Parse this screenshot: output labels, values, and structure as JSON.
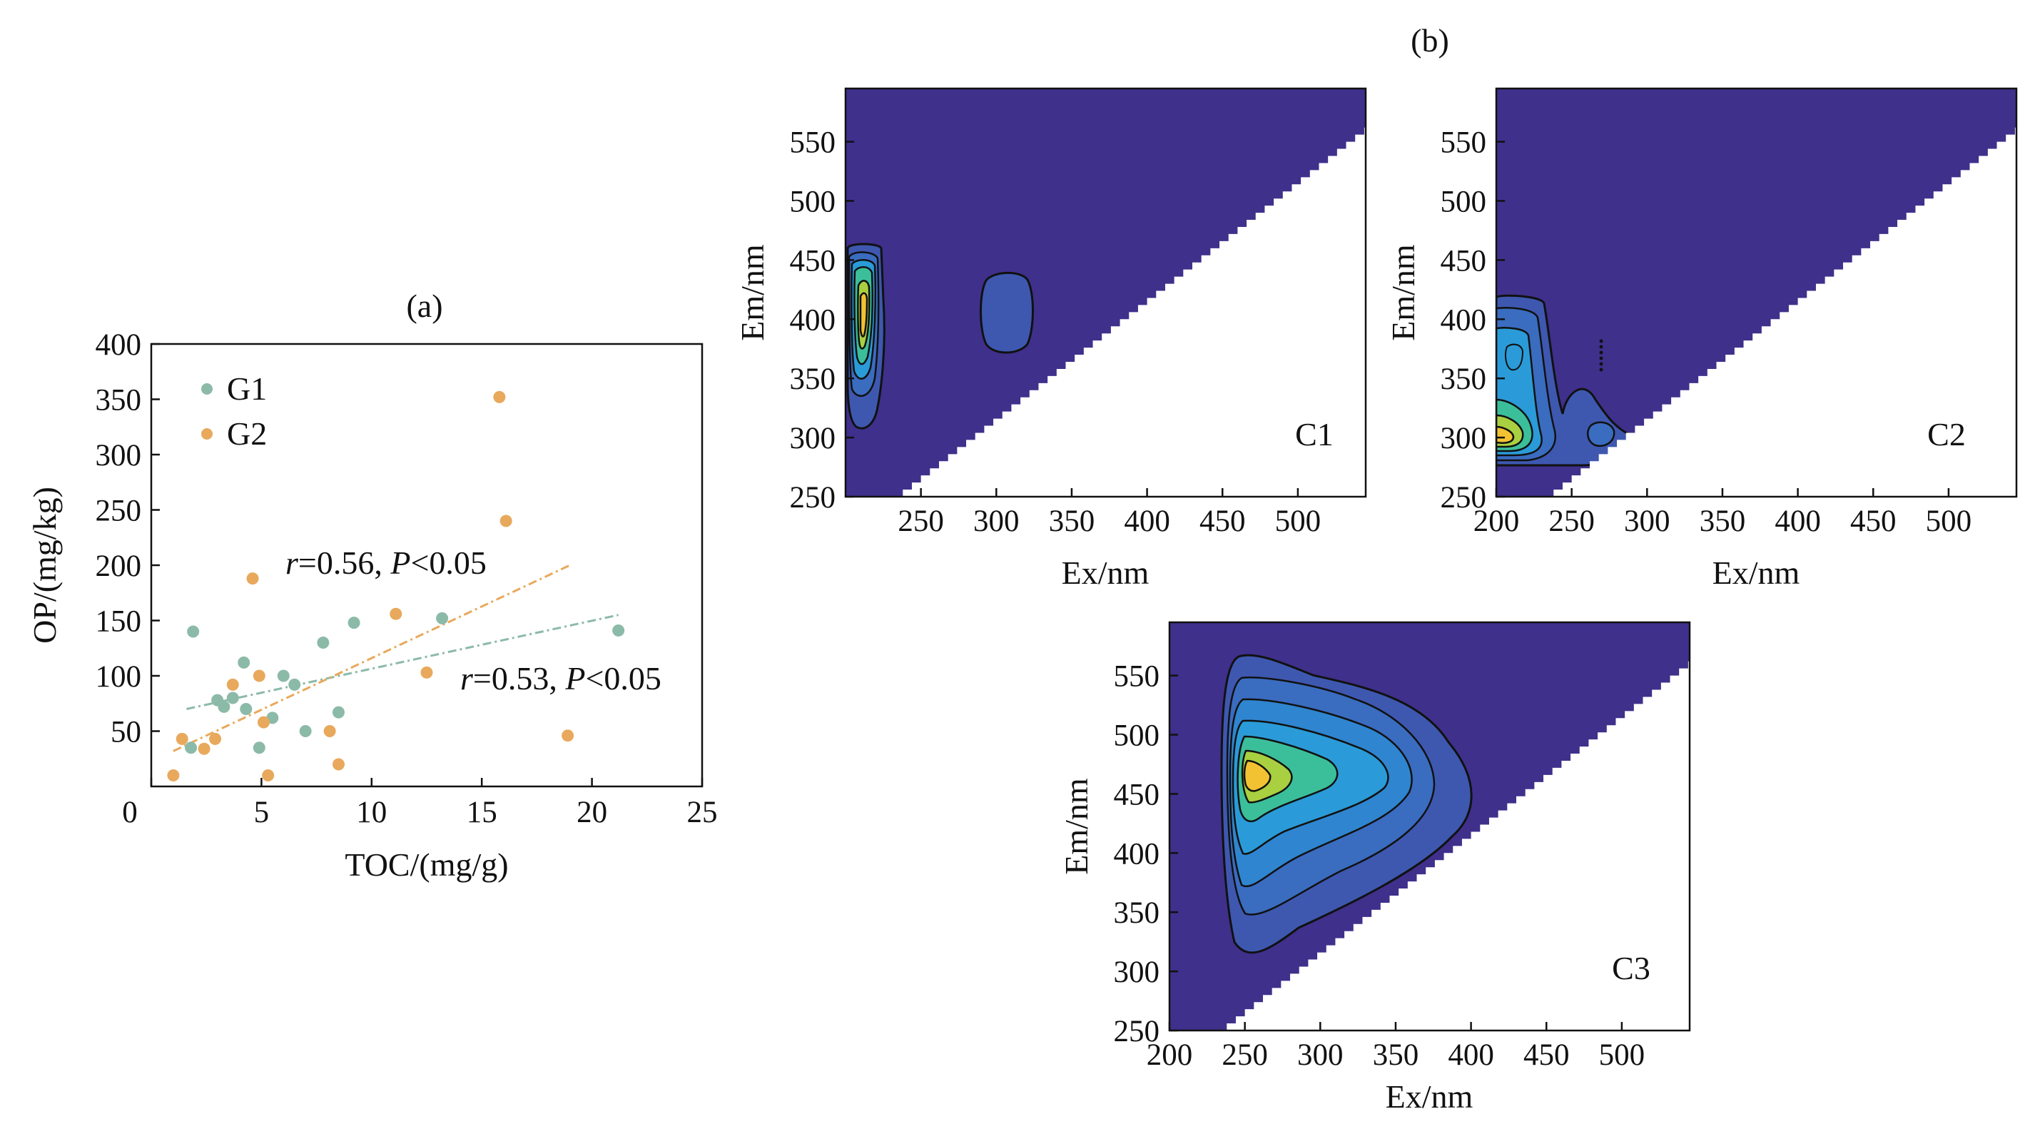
{
  "chart_data": [
    {
      "panel": "(a)",
      "type": "scatter",
      "xlabel": "TOC/(mg/g)",
      "ylabel": "OP/(mg/kg)",
      "xlim": [
        0,
        25
      ],
      "ylim": [
        0,
        400
      ],
      "xticks": [
        "0",
        "5",
        "10",
        "15",
        "20",
        "25"
      ],
      "yticks": [
        "50",
        "100",
        "150",
        "200",
        "250",
        "300",
        "350",
        "400"
      ],
      "legend": "top-left",
      "grid": false,
      "series": [
        {
          "name": "G1",
          "color": "#8cbaa8",
          "points": [
            [
              1.8,
              35
            ],
            [
              1.9,
              140
            ],
            [
              3.0,
              78
            ],
            [
              3.3,
              72
            ],
            [
              3.7,
              80
            ],
            [
              4.2,
              112
            ],
            [
              4.3,
              70
            ],
            [
              4.9,
              35
            ],
            [
              5.5,
              62
            ],
            [
              6.0,
              100
            ],
            [
              6.5,
              92
            ],
            [
              7.0,
              50
            ],
            [
              7.8,
              130
            ],
            [
              8.5,
              67
            ],
            [
              9.2,
              148
            ],
            [
              13.2,
              152
            ],
            [
              21.2,
              141
            ]
          ],
          "fit_line": [
            [
              1.6,
              70
            ],
            [
              21.2,
              155
            ]
          ],
          "annotation": {
            "r": "r",
            "text": "=0.53, ",
            "p": "P",
            "rest": "<0.05"
          }
        },
        {
          "name": "G2",
          "color": "#e8a95c",
          "points": [
            [
              1.0,
              10
            ],
            [
              1.4,
              43
            ],
            [
              2.4,
              34
            ],
            [
              2.9,
              43
            ],
            [
              3.7,
              92
            ],
            [
              4.6,
              188
            ],
            [
              4.9,
              100
            ],
            [
              5.1,
              58
            ],
            [
              5.3,
              10
            ],
            [
              8.1,
              50
            ],
            [
              8.5,
              20
            ],
            [
              11.1,
              156
            ],
            [
              12.5,
              103
            ],
            [
              15.8,
              352
            ],
            [
              16.1,
              240
            ],
            [
              18.9,
              46
            ]
          ],
          "fit_line": [
            [
              1.0,
              32
            ],
            [
              19.0,
              200
            ]
          ],
          "annotation": {
            "r": "r",
            "text": "=0.56, ",
            "p": "P",
            "rest": "<0.05"
          }
        }
      ]
    },
    {
      "panel": "(b)",
      "type": "heatmap",
      "subplots": [
        {
          "name": "C1",
          "xlabel": "Ex/nm",
          "ylabel": "Em/nm",
          "xlim": [
            200,
            545
          ],
          "ylim": [
            250,
            595
          ],
          "xticks": [
            "250",
            "300",
            "350",
            "400",
            "450",
            "500"
          ],
          "yticks": [
            "250",
            "300",
            "350",
            "400",
            "450",
            "500",
            "550"
          ]
        },
        {
          "name": "C2",
          "xlabel": "Ex/nm",
          "ylabel": "Em/nm",
          "xlim": [
            200,
            545
          ],
          "ylim": [
            250,
            595
          ],
          "xticks": [
            "200",
            "250",
            "300",
            "350",
            "400",
            "450",
            "500"
          ],
          "yticks": [
            "250",
            "300",
            "350",
            "400",
            "450",
            "500",
            "550"
          ]
        },
        {
          "name": "C3",
          "xlabel": "Ex/nm",
          "ylabel": "Em/nm",
          "xlim": [
            200,
            545
          ],
          "ylim": [
            250,
            595
          ],
          "xticks": [
            "200",
            "250",
            "300",
            "350",
            "400",
            "450",
            "500"
          ],
          "yticks": [
            "250",
            "300",
            "350",
            "400",
            "450",
            "500",
            "550"
          ]
        }
      ],
      "colors": {
        "background": "#3f308c",
        "low": "#3e58b0",
        "mid": "#2a9bd8",
        "midhigh": "#3bbf9a",
        "high": "#a8d040",
        "peak": "#f2c232"
      }
    }
  ]
}
